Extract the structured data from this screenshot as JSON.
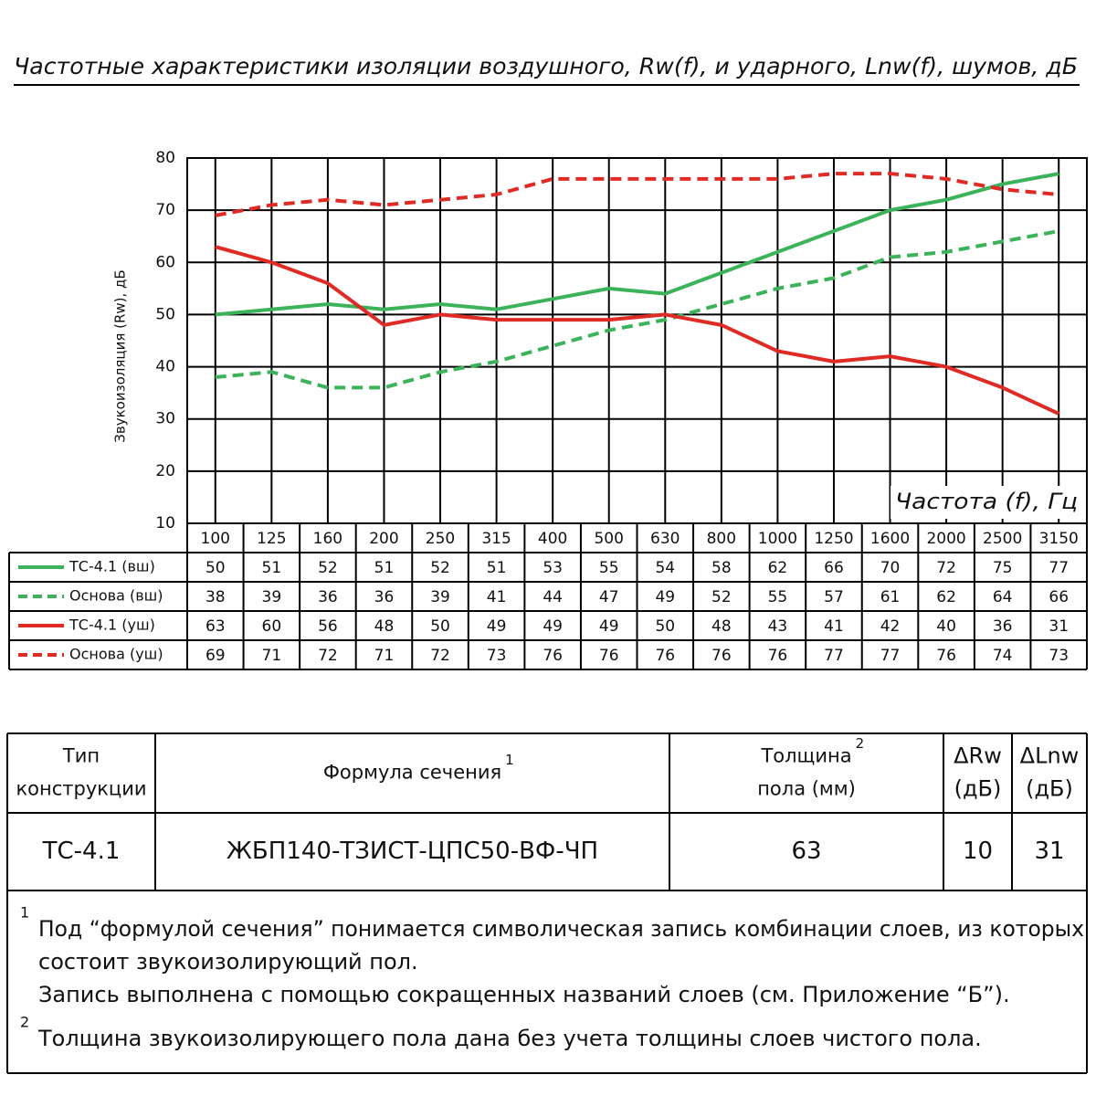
{
  "chart_data": {
    "type": "line",
    "title": "Частотные характеристики изоляции воздушного, Rw(f), и ударного, Lnw(f), шумов, дБ",
    "y_label": "Звукоизоляция (Rw), дБ",
    "x_label": "Частота (f), Гц",
    "categories": [
      "100",
      "125",
      "160",
      "200",
      "250",
      "315",
      "400",
      "500",
      "630",
      "800",
      "1000",
      "1250",
      "1600",
      "2000",
      "2500",
      "3150"
    ],
    "series": [
      {
        "name": "ТС-4.1 (вш)",
        "color": "#3cb35a",
        "dash": false,
        "values": [
          50,
          51,
          52,
          51,
          52,
          51,
          53,
          55,
          54,
          58,
          62,
          66,
          70,
          72,
          75,
          77
        ]
      },
      {
        "name": "Основа (вш)",
        "color": "#3cb35a",
        "dash": true,
        "values": [
          38,
          39,
          36,
          36,
          39,
          41,
          44,
          47,
          49,
          52,
          55,
          57,
          61,
          62,
          64,
          66
        ]
      },
      {
        "name": "ТС-4.1 (уш)",
        "color": "#e02a24",
        "dash": false,
        "values": [
          63,
          60,
          56,
          48,
          50,
          49,
          49,
          49,
          50,
          48,
          43,
          41,
          42,
          40,
          36,
          31
        ]
      },
      {
        "name": "Основа (уш)",
        "color": "#e02a24",
        "dash": true,
        "values": [
          69,
          71,
          72,
          71,
          72,
          73,
          76,
          76,
          76,
          76,
          76,
          77,
          77,
          76,
          74,
          73
        ]
      }
    ],
    "ylim": [
      10,
      80
    ],
    "yticks": [
      10,
      20,
      30,
      40,
      50,
      60,
      70,
      80
    ],
    "grid": true
  },
  "table": {
    "header": [
      {
        "lines": [
          "Тип",
          "конструкции"
        ]
      },
      {
        "lines": [
          "Формула сечения"
        ],
        "note": "1"
      },
      {
        "lines": [
          "Толщина",
          "пола (мм)"
        ],
        "note": "2"
      },
      {
        "lines": [
          "ΔRw",
          "(дБ)"
        ]
      },
      {
        "lines": [
          "ΔLnw",
          "(дБ)"
        ]
      }
    ],
    "rows": [
      [
        "ТС-4.1",
        "ЖБП140-ТЗИСТ-ЦПС50-ВФ-ЧП",
        "63",
        "10",
        "31"
      ]
    ]
  },
  "footnotes": [
    {
      "mark": "1",
      "lines": [
        "Под “формулой сечения” понимается символическая запись комбинации слоев, из которых",
        "состоит звукоизолирующий пол.",
        "Запись выполнена с помощью сокращенных названий слоев (см. Приложение “Б”)."
      ]
    },
    {
      "mark": "2",
      "lines": [
        "Толщина звукоизолирующего пола дана без учета толщины слоев чистого пола."
      ]
    }
  ]
}
